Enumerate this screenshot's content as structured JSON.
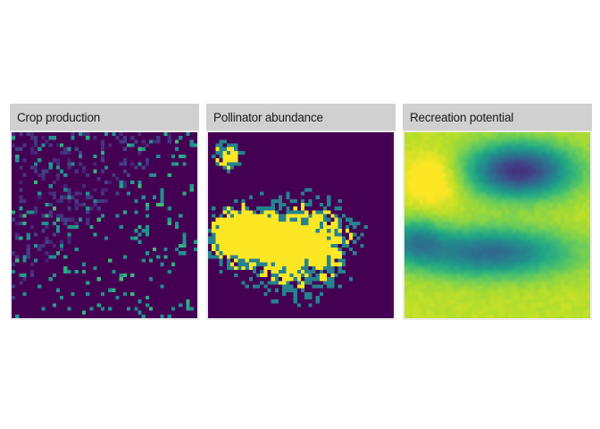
{
  "chart_data": [
    {
      "type": "heatmap",
      "title": "Crop production",
      "colormap": "viridis",
      "grid": [
        50,
        50
      ],
      "legend": "none",
      "pattern": "sparse",
      "seed": 11
    },
    {
      "type": "heatmap",
      "title": "Pollinator abundance",
      "colormap": "viridis",
      "grid": [
        50,
        50
      ],
      "legend": "none",
      "pattern": "blob",
      "seed": 29
    },
    {
      "type": "heatmap",
      "title": "Recreation potential",
      "colormap": "viridis",
      "grid": [
        50,
        50
      ],
      "legend": "none",
      "pattern": "smooth",
      "seed": 47
    }
  ]
}
